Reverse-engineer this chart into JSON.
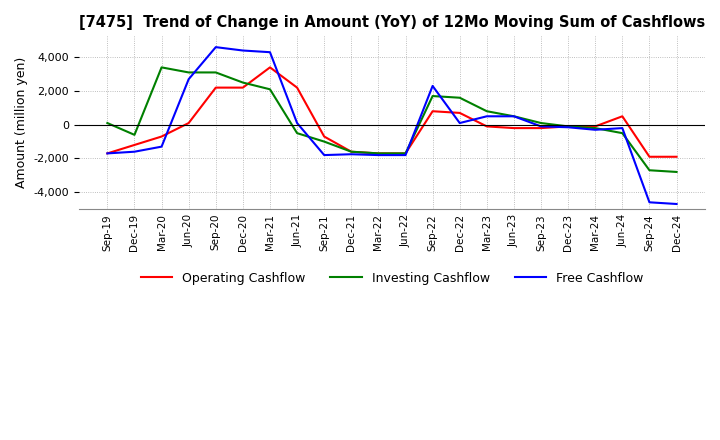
{
  "title": "[7475]  Trend of Change in Amount (YoY) of 12Mo Moving Sum of Cashflows",
  "ylabel": "Amount (million yen)",
  "x_labels": [
    "Sep-19",
    "Dec-19",
    "Mar-20",
    "Jun-20",
    "Sep-20",
    "Dec-20",
    "Mar-21",
    "Jun-21",
    "Sep-21",
    "Dec-21",
    "Mar-22",
    "Jun-22",
    "Sep-22",
    "Dec-22",
    "Mar-23",
    "Jun-23",
    "Sep-23",
    "Dec-23",
    "Mar-24",
    "Jun-24",
    "Sep-24",
    "Dec-24"
  ],
  "operating": [
    -1700,
    -1200,
    -700,
    100,
    2200,
    2200,
    3400,
    2200,
    -700,
    -1600,
    -1700,
    -1700,
    800,
    700,
    -100,
    -200,
    -200,
    -100,
    -100,
    500,
    -1900,
    -1900
  ],
  "investing": [
    100,
    -600,
    3400,
    3100,
    3100,
    2500,
    2100,
    -500,
    -1000,
    -1600,
    -1700,
    -1700,
    1700,
    1600,
    800,
    500,
    100,
    -100,
    -200,
    -500,
    -2700,
    -2800
  ],
  "free": [
    -1700,
    -1600,
    -1300,
    2700,
    4600,
    4400,
    4300,
    100,
    -1800,
    -1750,
    -1800,
    -1800,
    2300,
    100,
    500,
    500,
    -100,
    -150,
    -300,
    -200,
    -4600,
    -4700
  ],
  "operating_color": "#ff0000",
  "investing_color": "#008000",
  "free_color": "#0000ff",
  "ylim": [
    -5000,
    5300
  ],
  "yticks": [
    -4000,
    -2000,
    0,
    2000,
    4000
  ],
  "background_color": "#ffffff",
  "grid_color": "#aaaaaa"
}
